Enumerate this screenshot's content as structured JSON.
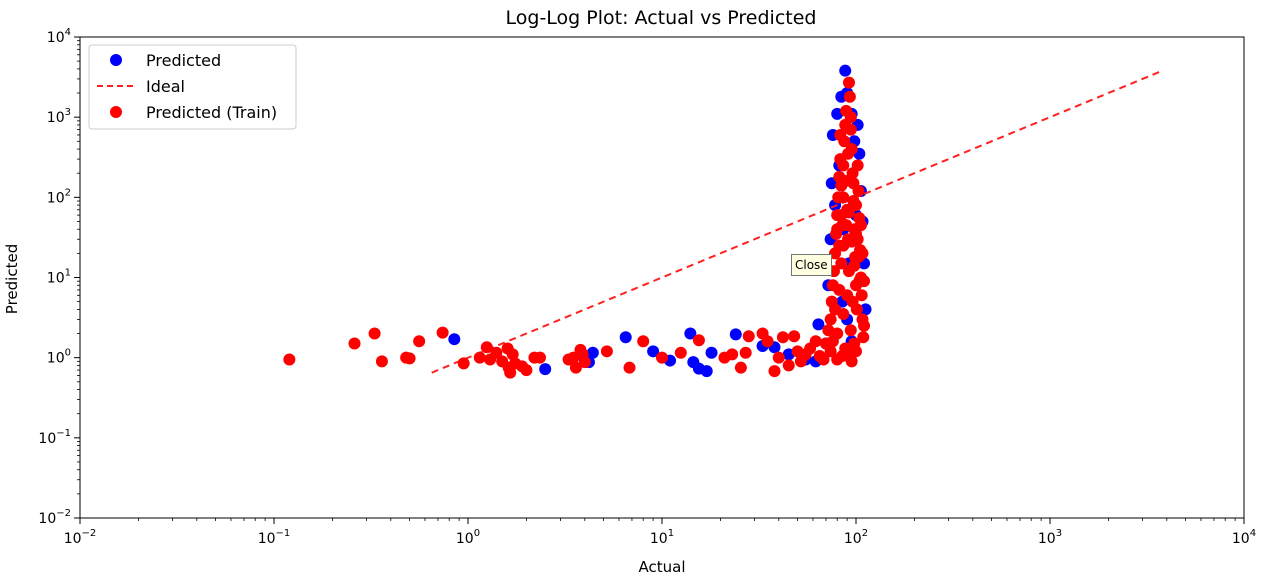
{
  "tooltip": {
    "text": "Close"
  },
  "colors": {
    "predicted": "#0000ff",
    "train": "#ff0000",
    "ideal": "#ff2020"
  },
  "chart_data": {
    "type": "scatter",
    "title": "Log-Log Plot: Actual vs Predicted",
    "xlabel": "Actual",
    "ylabel": "Predicted",
    "xscale": "log",
    "yscale": "log",
    "xlim": [
      0.01,
      10000
    ],
    "ylim": [
      0.01,
      10000
    ],
    "x_ticks": [
      {
        "base": "10",
        "exp": "−2"
      },
      {
        "base": "10",
        "exp": "−1"
      },
      {
        "base": "10",
        "exp": "0"
      },
      {
        "base": "10",
        "exp": "1"
      },
      {
        "base": "10",
        "exp": "2"
      },
      {
        "base": "10",
        "exp": "3"
      },
      {
        "base": "10",
        "exp": "4"
      }
    ],
    "y_ticks": [
      {
        "base": "10",
        "exp": "−2"
      },
      {
        "base": "10",
        "exp": "−1"
      },
      {
        "base": "10",
        "exp": "0"
      },
      {
        "base": "10",
        "exp": "1"
      },
      {
        "base": "10",
        "exp": "2"
      },
      {
        "base": "10",
        "exp": "3"
      },
      {
        "base": "10",
        "exp": "4"
      }
    ],
    "tick_values": [
      0.01,
      0.1,
      1,
      10,
      100,
      1000,
      10000
    ],
    "grid": false,
    "legend": {
      "placement": "top-left",
      "entries": [
        "Predicted",
        "Ideal",
        "Predicted (Train)"
      ]
    },
    "series": [
      {
        "name": "Predicted",
        "type": "scatter",
        "color": "#0000ff",
        "points": [
          [
            0.85,
            1.7
          ],
          [
            2.5,
            0.72
          ],
          [
            4.2,
            0.88
          ],
          [
            4.4,
            1.15
          ],
          [
            6.5,
            1.8
          ],
          [
            9.0,
            1.2
          ],
          [
            11.0,
            0.92
          ],
          [
            14.0,
            2.0
          ],
          [
            14.5,
            0.88
          ],
          [
            15.5,
            0.73
          ],
          [
            17.0,
            0.68
          ],
          [
            18.0,
            1.15
          ],
          [
            24.0,
            1.95
          ],
          [
            33.0,
            1.4
          ],
          [
            38.0,
            1.35
          ],
          [
            45.0,
            1.1
          ],
          [
            55.0,
            0.95
          ],
          [
            62.0,
            0.9
          ],
          [
            64.0,
            2.6
          ],
          [
            70.0,
            1.5
          ],
          [
            72.0,
            8.0
          ],
          [
            74.0,
            30.0
          ],
          [
            75.0,
            150.0
          ],
          [
            76.0,
            600.0
          ],
          [
            78.0,
            80.0
          ],
          [
            80.0,
            1100.0
          ],
          [
            82.0,
            250.0
          ],
          [
            84.0,
            1800.0
          ],
          [
            86.0,
            40.0
          ],
          [
            88.0,
            3800.0
          ],
          [
            90.0,
            2000.0
          ],
          [
            92.0,
            15.0
          ],
          [
            95.0,
            1100.0
          ],
          [
            98.0,
            500.0
          ],
          [
            100.0,
            60.0
          ],
          [
            102.0,
            800.0
          ],
          [
            104.0,
            350.0
          ],
          [
            106.0,
            120.0
          ],
          [
            108.0,
            50.0
          ],
          [
            110.0,
            15.0
          ],
          [
            112.0,
            4.0
          ],
          [
            85.0,
            5.0
          ],
          [
            90.0,
            3.0
          ],
          [
            95.0,
            1.6
          ]
        ]
      },
      {
        "name": "Ideal",
        "type": "line",
        "style": "dashed",
        "color": "#ff2020",
        "points": [
          [
            0.65,
            0.65
          ],
          [
            3700,
            3700
          ]
        ]
      },
      {
        "name": "Predicted (Train)",
        "type": "scatter",
        "color": "#ff0000",
        "points": [
          [
            0.12,
            0.95
          ],
          [
            0.26,
            1.5
          ],
          [
            0.33,
            2.0
          ],
          [
            0.36,
            0.9
          ],
          [
            0.48,
            1.0
          ],
          [
            0.5,
            0.98
          ],
          [
            0.56,
            1.6
          ],
          [
            0.74,
            2.05
          ],
          [
            0.95,
            0.85
          ],
          [
            1.15,
            1.0
          ],
          [
            1.25,
            1.35
          ],
          [
            1.3,
            0.95
          ],
          [
            1.4,
            1.15
          ],
          [
            1.5,
            0.9
          ],
          [
            1.6,
            1.3
          ],
          [
            1.62,
            0.75
          ],
          [
            1.65,
            0.65
          ],
          [
            1.7,
            1.1
          ],
          [
            1.75,
            0.85
          ],
          [
            1.9,
            0.78
          ],
          [
            2.0,
            0.7
          ],
          [
            2.2,
            1.0
          ],
          [
            2.35,
            1.0
          ],
          [
            3.3,
            0.95
          ],
          [
            3.5,
            1.0
          ],
          [
            3.6,
            0.75
          ],
          [
            3.8,
            1.25
          ],
          [
            3.9,
            1.1
          ],
          [
            4.0,
            0.88
          ],
          [
            5.2,
            1.2
          ],
          [
            6.8,
            0.75
          ],
          [
            8.0,
            1.6
          ],
          [
            10.0,
            1.0
          ],
          [
            12.5,
            1.15
          ],
          [
            15.5,
            1.65
          ],
          [
            21.0,
            1.0
          ],
          [
            23.0,
            1.1
          ],
          [
            25.5,
            0.75
          ],
          [
            27.0,
            1.15
          ],
          [
            28.0,
            1.85
          ],
          [
            33.0,
            2.0
          ],
          [
            35.0,
            1.6
          ],
          [
            38.0,
            0.68
          ],
          [
            40.0,
            1.0
          ],
          [
            42.0,
            1.8
          ],
          [
            45.0,
            0.8
          ],
          [
            48.0,
            1.85
          ],
          [
            50.0,
            1.2
          ],
          [
            52.0,
            0.9
          ],
          [
            55.0,
            1.1
          ],
          [
            58.0,
            1.3
          ],
          [
            62.0,
            1.6
          ],
          [
            65.0,
            1.05
          ],
          [
            68.0,
            0.95
          ],
          [
            70.0,
            1.5
          ],
          [
            72.0,
            2.2
          ],
          [
            74.0,
            3.0
          ],
          [
            75.0,
            5.0
          ],
          [
            76.0,
            8.0
          ],
          [
            77.0,
            12.0
          ],
          [
            78.0,
            20.0
          ],
          [
            79.0,
            35.0
          ],
          [
            80.0,
            60.0
          ],
          [
            81.0,
            100.0
          ],
          [
            82.0,
            180.0
          ],
          [
            83.0,
            300.0
          ],
          [
            84.0,
            140.0
          ],
          [
            85.0,
            45.0
          ],
          [
            86.0,
            25.0
          ],
          [
            87.0,
            500.0
          ],
          [
            88.0,
            800.0
          ],
          [
            89.0,
            1200.0
          ],
          [
            90.0,
            70.0
          ],
          [
            91.0,
            30.0
          ],
          [
            92.0,
            2700.0
          ],
          [
            93.0,
            1800.0
          ],
          [
            94.0,
            1000.0
          ],
          [
            95.0,
            400.0
          ],
          [
            96.0,
            200.0
          ],
          [
            97.0,
            90.0
          ],
          [
            98.0,
            40.0
          ],
          [
            99.0,
            18.0
          ],
          [
            100.0,
            8.0
          ],
          [
            101.0,
            4.0
          ],
          [
            102.0,
            250.0
          ],
          [
            103.0,
            120.0
          ],
          [
            104.0,
            55.0
          ],
          [
            105.0,
            22.0
          ],
          [
            106.0,
            10.0
          ],
          [
            107.0,
            6.0
          ],
          [
            108.0,
            3.0
          ],
          [
            109.0,
            1.8
          ],
          [
            110.0,
            2.5
          ],
          [
            78.0,
            4.0
          ],
          [
            80.0,
            2.0
          ],
          [
            82.0,
            7.0
          ],
          [
            84.0,
            15.0
          ],
          [
            86.0,
            3.5
          ],
          [
            88.0,
            1.3
          ],
          [
            90.0,
            6.0
          ],
          [
            92.0,
            12.0
          ],
          [
            94.0,
            2.2
          ],
          [
            96.0,
            5.0
          ],
          [
            98.0,
            1.5
          ],
          [
            100.0,
            1.2
          ],
          [
            102.0,
            30.0
          ],
          [
            104.0,
            9.0
          ],
          [
            74.0,
            1.2
          ],
          [
            76.0,
            1.6
          ],
          [
            80.0,
            0.95
          ],
          [
            85.0,
            1.05
          ],
          [
            90.0,
            1.1
          ],
          [
            95.0,
            0.9
          ],
          [
            83.0,
            600.0
          ],
          [
            86.0,
            250.0
          ],
          [
            88.0,
            160.0
          ],
          [
            91.0,
            350.0
          ],
          [
            94.0,
            700.0
          ],
          [
            97.0,
            150.0
          ],
          [
            100.0,
            80.0
          ],
          [
            80.0,
            40.0
          ],
          [
            82.0,
            25.0
          ],
          [
            84.0,
            60.0
          ],
          [
            86.0,
            100.0
          ],
          [
            89.0,
            45.0
          ],
          [
            92.0,
            65.0
          ],
          [
            95.0,
            28.0
          ],
          [
            98.0,
            14.0
          ],
          [
            100.0,
            35.0
          ],
          [
            103.0,
            18.0
          ],
          [
            106.0,
            45.0
          ],
          [
            108.0,
            20.0
          ],
          [
            110.0,
            9.0
          ]
        ]
      }
    ]
  }
}
